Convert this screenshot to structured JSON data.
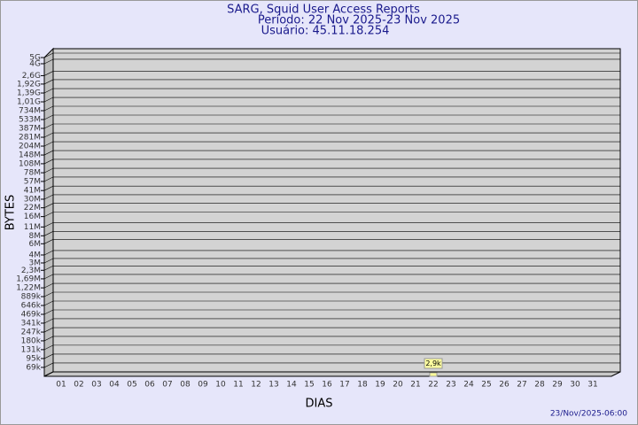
{
  "chart_data": {
    "type": "bar",
    "title": [
      "SARG, Squid User Access Reports",
      "Período: 22 Nov 2025-23 Nov 2025",
      "Usuário: 45.11.18.254"
    ],
    "x_label": "DIAS",
    "y_label": "BYTES",
    "footer": "23/Nov/2025-06:00",
    "categories": [
      "01",
      "02",
      "03",
      "04",
      "05",
      "06",
      "07",
      "08",
      "09",
      "10",
      "11",
      "12",
      "13",
      "14",
      "15",
      "16",
      "17",
      "18",
      "19",
      "20",
      "21",
      "22",
      "23",
      "24",
      "25",
      "26",
      "27",
      "28",
      "29",
      "30",
      "31"
    ],
    "values": [
      null,
      null,
      null,
      null,
      null,
      null,
      null,
      null,
      null,
      null,
      null,
      null,
      null,
      null,
      null,
      null,
      null,
      null,
      null,
      null,
      null,
      2900,
      null,
      null,
      null,
      null,
      null,
      null,
      null,
      null,
      null
    ],
    "value_labels": [
      null,
      null,
      null,
      null,
      null,
      null,
      null,
      null,
      null,
      null,
      null,
      null,
      null,
      null,
      null,
      null,
      null,
      null,
      null,
      null,
      null,
      "2,9k",
      null,
      null,
      null,
      null,
      null,
      null,
      null,
      null,
      null
    ],
    "color": "#ffff99",
    "log_scale": true,
    "grid": true,
    "ylim": [
      50000,
      5000000000
    ],
    "yticks": [
      {
        "value": 69000,
        "label": "69k"
      },
      {
        "value": 95000,
        "label": "95k"
      },
      {
        "value": 131000,
        "label": "131k"
      },
      {
        "value": 180000,
        "label": "180k"
      },
      {
        "value": 247000,
        "label": "247k"
      },
      {
        "value": 341000,
        "label": "341k"
      },
      {
        "value": 469000,
        "label": "469k"
      },
      {
        "value": 646000,
        "label": "646k"
      },
      {
        "value": 889000,
        "label": "889k"
      },
      {
        "value": 1220000,
        "label": "1,22M"
      },
      {
        "value": 1690000,
        "label": "1,69M"
      },
      {
        "value": 2300000,
        "label": "2,3M"
      },
      {
        "value": 3000000,
        "label": "3M"
      },
      {
        "value": 4000000,
        "label": "4M"
      },
      {
        "value": 6000000,
        "label": "6M"
      },
      {
        "value": 8000000,
        "label": "8M"
      },
      {
        "value": 11000000,
        "label": "11M"
      },
      {
        "value": 16000000,
        "label": "16M"
      },
      {
        "value": 22000000,
        "label": "22M"
      },
      {
        "value": 30000000,
        "label": "30M"
      },
      {
        "value": 41000000,
        "label": "41M"
      },
      {
        "value": 57000000,
        "label": "57M"
      },
      {
        "value": 78000000,
        "label": "78M"
      },
      {
        "value": 108000000,
        "label": "108M"
      },
      {
        "value": 148000000,
        "label": "148M"
      },
      {
        "value": 204000000,
        "label": "204M"
      },
      {
        "value": 281000000,
        "label": "281M"
      },
      {
        "value": 387000000,
        "label": "387M"
      },
      {
        "value": 533000000,
        "label": "533M"
      },
      {
        "value": 734000000,
        "label": "734M"
      },
      {
        "value": 1010000000,
        "label": "1,01G"
      },
      {
        "value": 1390000000,
        "label": "1,39G"
      },
      {
        "value": 1920000000,
        "label": "1,92G"
      },
      {
        "value": 2600000000,
        "label": "2,6G"
      },
      {
        "value": 4000000000,
        "label": "4G"
      },
      {
        "value": 5000000000,
        "label": "5G"
      }
    ]
  }
}
